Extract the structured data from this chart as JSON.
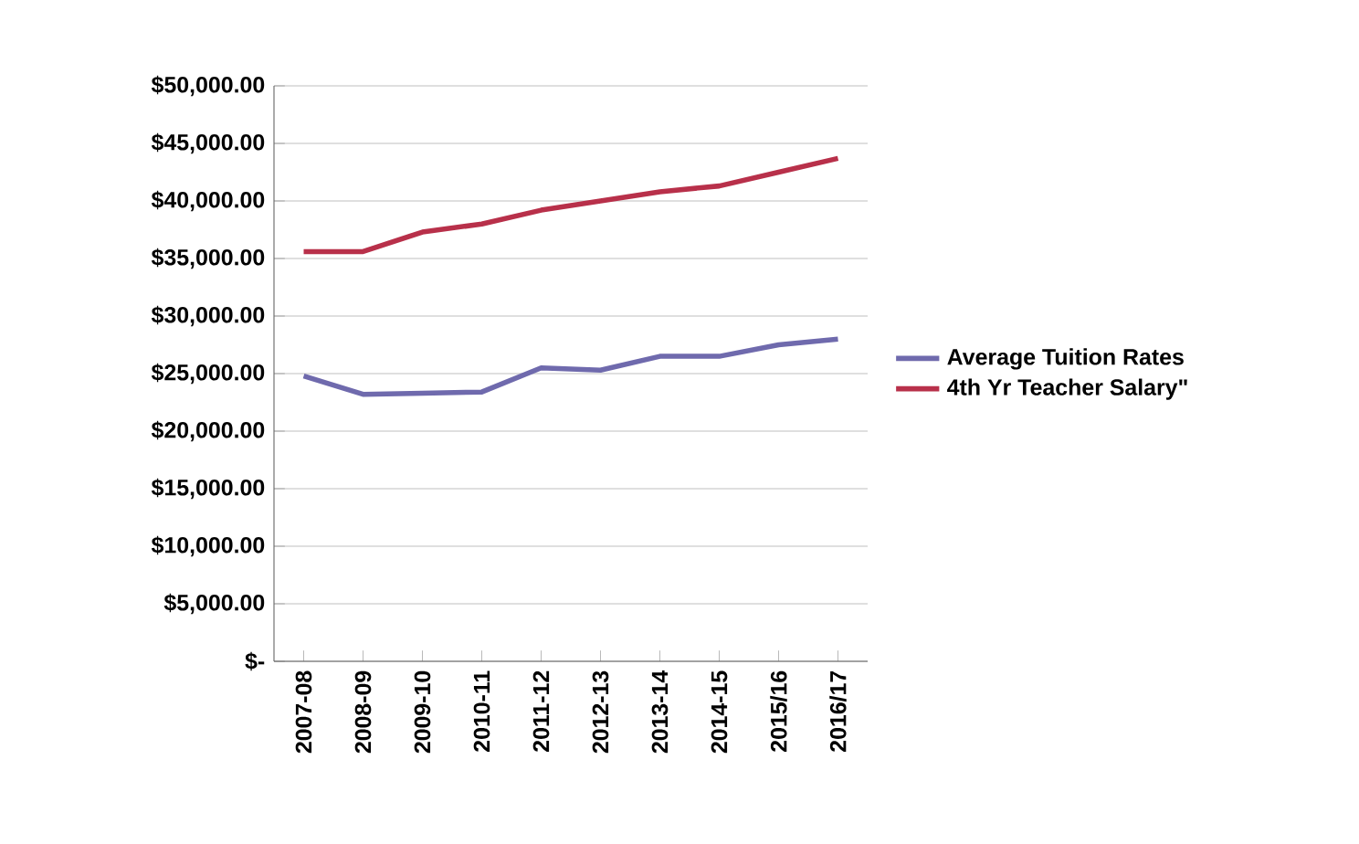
{
  "chart_data": {
    "type": "line",
    "categories": [
      "2007-08",
      "2008-09",
      "2009-10",
      "2010-11",
      "2011-12",
      "2012-13",
      "2013-14",
      "2014-15",
      "2015/16",
      "2016/17"
    ],
    "series": [
      {
        "name": "Average Tuition Rates",
        "color": "#6f6aad",
        "values": [
          24800,
          23200,
          23300,
          23400,
          25500,
          25300,
          26500,
          26500,
          27500,
          28000
        ]
      },
      {
        "name": "4th Yr Teacher Salary\"",
        "color": "#b8304a",
        "values": [
          35600,
          35600,
          37300,
          38000,
          39200,
          40000,
          40800,
          41300,
          42500,
          43700
        ]
      }
    ],
    "ylim": [
      0,
      50000
    ],
    "yticks": [
      {
        "value": 0,
        "label": "$-"
      },
      {
        "value": 5000,
        "label": "$5,000.00"
      },
      {
        "value": 10000,
        "label": "$10,000.00"
      },
      {
        "value": 15000,
        "label": "$15,000.00"
      },
      {
        "value": 20000,
        "label": "$20,000.00"
      },
      {
        "value": 25000,
        "label": "$25,000.00"
      },
      {
        "value": 30000,
        "label": "$30,000.00"
      },
      {
        "value": 35000,
        "label": "$35,000.00"
      },
      {
        "value": 40000,
        "label": "$40,000.00"
      },
      {
        "value": 45000,
        "label": "$45,000.00"
      },
      {
        "value": 50000,
        "label": "$50,000.00"
      }
    ],
    "grid": "y",
    "legend": "right",
    "marker": "none",
    "line_style": "solid"
  }
}
